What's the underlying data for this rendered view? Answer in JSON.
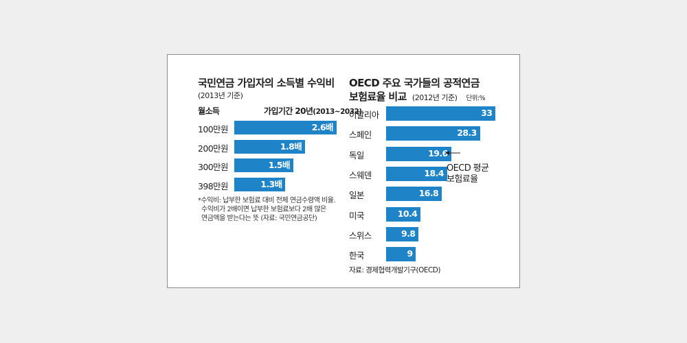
{
  "chart_data": [
    {
      "type": "bar",
      "orientation": "horizontal",
      "title": "국민연금 가입자의 소득별 수익비",
      "subtitle": "(2013년 기준)",
      "category_header": "월소득",
      "series_header": "가입기간 20년",
      "series_header_note": "(2013~2032)",
      "categories": [
        "100만원",
        "200만원",
        "300만원",
        "398만원"
      ],
      "values": [
        2.6,
        1.8,
        1.5,
        1.3
      ],
      "value_labels": [
        "2.6배",
        "1.8배",
        "1.5배",
        "1.3배"
      ],
      "note": [
        "*수익비: 납부한 보험료 대비 전체 연금수령액 비율.",
        "수익비가 2배이면 납부한 보험료보다 2배 많은",
        "연금액을 받는다는 뜻 (자료: 국민연금공단)"
      ],
      "color": "#1f83c7"
    },
    {
      "type": "bar",
      "orientation": "horizontal",
      "title": "OECD 주요 국가들의 공적연금",
      "title_line2": "보험료율 비교",
      "subtitle": "(2012년 기준)",
      "unit": "단위:%",
      "categories": [
        "이탈리아",
        "스페인",
        "독일",
        "스웨덴",
        "일본",
        "미국",
        "스위스",
        "한국"
      ],
      "values": [
        33,
        28.3,
        19.6,
        18.4,
        16.8,
        10.4,
        9.8,
        9
      ],
      "value_labels": [
        "33",
        "28.3",
        "19.6",
        "18.4",
        "16.8",
        "10.4",
        "9.8",
        "9"
      ],
      "annotation": [
        "OECD 평균",
        "보험료율"
      ],
      "annotation_target": "독일",
      "source": "자료: 경제협력개발기구(OECD)",
      "color": "#1f83c7"
    }
  ]
}
